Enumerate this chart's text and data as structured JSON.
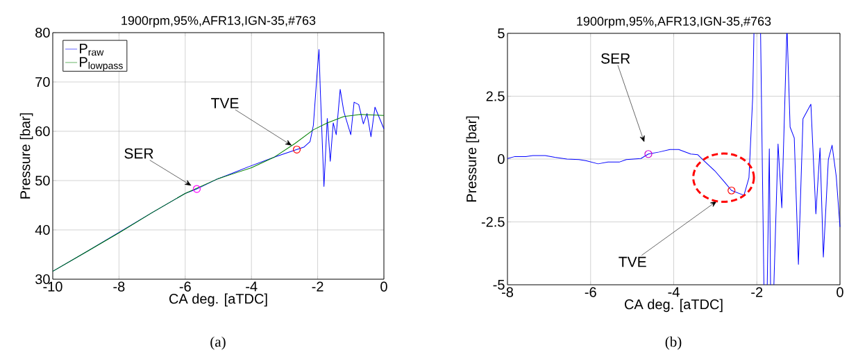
{
  "chart_data": [
    {
      "type": "line",
      "title": "1900rpm,95%,AFR13,IGN-35,#763",
      "xlabel": "CA deg. [aTDC]",
      "ylabel": "Pressure [bar]",
      "xlim": [
        -10,
        0
      ],
      "ylim": [
        30,
        80
      ],
      "xticks": [
        -10,
        -8,
        -6,
        -4,
        -2,
        0
      ],
      "yticks": [
        30,
        40,
        50,
        60,
        70,
        80
      ],
      "grid": true,
      "legend": "top left",
      "line_style": "solid",
      "marker": "none",
      "series": [
        {
          "name": "P$_{raw}$",
          "color": "#0000ff",
          "x": [
            -10,
            -9,
            -8.02,
            -7,
            -6,
            -5.65,
            -5.07,
            -4.5,
            -4.09,
            -3.25,
            -2.63,
            -2.41,
            -2.23,
            -2.13,
            -2.02,
            -1.96,
            -1.92,
            -1.81,
            -1.71,
            -1.62,
            -1.53,
            -1.44,
            -1.32,
            -1.21,
            -1.0,
            -0.9,
            -0.76,
            -0.62,
            -0.51,
            -0.39,
            -0.27,
            -0.16,
            0
          ],
          "values": [
            31.6,
            35.5,
            39.4,
            43.5,
            47.4,
            48.3,
            50.2,
            51.7,
            52.8,
            54.9,
            56.3,
            56.8,
            57.9,
            61.2,
            71.5,
            76.6,
            68.3,
            48.8,
            62.6,
            53.9,
            61.7,
            59.3,
            68.5,
            64,
            59.3,
            65.9,
            65.4,
            61.5,
            63.6,
            58.9,
            64.9,
            63.1,
            60.5
          ]
        },
        {
          "name": "P$_{lowpass}$",
          "color": "#008000",
          "x": [
            -10,
            -9,
            -8,
            -7,
            -6,
            -5,
            -4.5,
            -4,
            -3.3,
            -2.69,
            -2.13,
            -1.71,
            -1.21,
            -0.72,
            0
          ],
          "values": [
            31.6,
            35.5,
            39.4,
            43.5,
            47.4,
            50.4,
            51.5,
            52.6,
            54.8,
            57.5,
            60.3,
            61.7,
            63.0,
            63.4,
            63.2
          ]
        },
        {
          "type": "scatter",
          "marker": "circle",
          "color": "#ff00ff",
          "x": [
            -5.65
          ],
          "values": [
            48.3
          ]
        },
        {
          "type": "scatter",
          "marker": "circle",
          "color": "#ff0000",
          "x": [
            -2.63
          ],
          "values": [
            56.3
          ]
        }
      ],
      "annotations": [
        "SER",
        {
          "text": "TVE",
          "x": -2.78,
          "y": 57.1
        },
        "(a)"
      ]
    },
    {
      "type": "line",
      "title": "1900rpm,95%,AFR13,IGN-35,#763",
      "xlabel": "CA deg. [aTDC]",
      "ylabel": "Pressure [bar]",
      "xlim": [
        -8,
        0
      ],
      "ylim": [
        -5,
        5
      ],
      "xticks": [
        -8,
        -6,
        -4,
        -2,
        0
      ],
      "yticks": [
        -5,
        -2.5,
        0,
        2.5,
        5
      ],
      "grid": true,
      "line_style": "solid",
      "marker": "none",
      "series": [
        {
          "color": "#0000ff",
          "x": [
            -8,
            -7.82,
            -7.56,
            -7.39,
            -7.09,
            -6.86,
            -6.57,
            -6.28,
            -6.1,
            -5.82,
            -5.58,
            -5.31,
            -5.14,
            -4.79,
            -4.61,
            -4.35,
            -4.09,
            -3.88,
            -3.59,
            -3.42,
            -3.27,
            -3.01,
            -2.77,
            -2.61,
            -2.31,
            -2.19,
            -2.1,
            -2.07,
            -2.0,
            -1.91,
            -1.83,
            -1.79,
            -1.75,
            -1.7,
            -1.67,
            -1.63,
            -1.59,
            -1.49,
            -1.4,
            -1.28,
            -1.275,
            -1.27,
            -1.2,
            -1.1,
            -1.0,
            -0.89,
            -0.7,
            -0.58,
            -0.48,
            -0.4,
            -0.28,
            -0.19,
            -0.09,
            0
          ],
          "values": [
            0.02,
            0.1,
            0.1,
            0.14,
            0.14,
            0.07,
            0.0,
            -0.02,
            -0.07,
            -0.19,
            -0.12,
            -0.12,
            -0.02,
            0.02,
            0.2,
            0.28,
            0.38,
            0.38,
            0.2,
            0.17,
            -0.07,
            -0.47,
            -0.93,
            -1.25,
            -1.44,
            -0.74,
            2.46,
            5,
            null,
            5,
            -5,
            null,
            -5,
            0.41,
            -5,
            null,
            -5,
            0.6,
            -1.94,
            5,
            null,
            5,
            1.27,
            0.84,
            -4.19,
            1.6,
            2.18,
            -2.18,
            0.44,
            -3.9,
            -0.02,
            0.55,
            -0.69,
            -2.7
          ]
        },
        {
          "type": "scatter",
          "marker": "circle",
          "color": "#cc00cc",
          "x": [
            -4.61
          ],
          "values": [
            0.2
          ]
        },
        {
          "type": "scatter",
          "marker": "circle",
          "color": "#ff0000",
          "x": [
            -2.61
          ],
          "values": [
            -1.25
          ]
        }
      ],
      "annotations": [
        "SER",
        "TVE",
        "(b)"
      ]
    }
  ]
}
